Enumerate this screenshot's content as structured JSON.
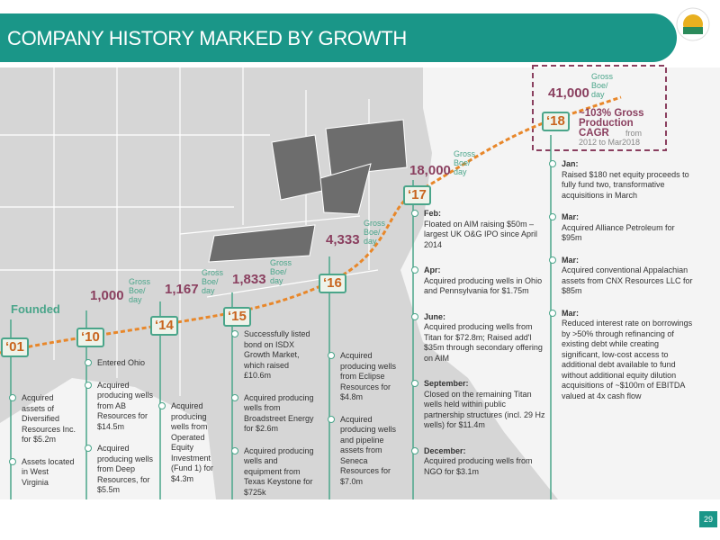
{
  "header": {
    "title": "COMPANY HISTORY MARKED BY GROWTH"
  },
  "founded_label": "Founded",
  "milestones": [
    {
      "year": "‘01",
      "items": [
        {
          "text": "Acquired assets of Diversified Resources Inc. for $5.2m"
        },
        {
          "text": "Assets located in West Virginia"
        }
      ]
    },
    {
      "year": "‘10",
      "production": "1,000",
      "unit": "Gross Boe/ day",
      "items": [
        {
          "text": "Entered Ohio"
        },
        {
          "text": "Acquired producing wells from AB Resources for $14.5m"
        },
        {
          "text": "Acquired producing wells from Deep Resources, for $5.5m"
        }
      ]
    },
    {
      "year": "‘14",
      "production": "1,167",
      "unit": "Gross Boe/ day",
      "items": [
        {
          "text": "Acquired producing wells from Operated Equity Investment (Fund 1) for $4.3m"
        }
      ]
    },
    {
      "year": "‘15",
      "production": "1,833",
      "unit": "Gross Boe/ day",
      "items": [
        {
          "text": "Successfully listed bond on ISDX Growth Market, which raised £10.6m"
        },
        {
          "text": "Acquired producing wells from Broadstreet Energy for $2.6m"
        },
        {
          "text": "Acquired producing wells and equipment from Texas Keystone for $725k"
        }
      ]
    },
    {
      "year": "‘16",
      "production": "4,333",
      "unit": "Gross Boe/ day",
      "items": [
        {
          "text": "Acquired producing wells from Eclipse Resources for $4.8m"
        },
        {
          "text": "Acquired producing wells and pipeline assets from Seneca Resources for $7.0m"
        }
      ]
    },
    {
      "year": "‘17",
      "production": "18,000",
      "unit": "Gross Boe/ day",
      "items": [
        {
          "heading": "Feb:",
          "text": "Floated on AIM raising $50m – largest UK O&G IPO since April 2014"
        },
        {
          "heading": "Apr:",
          "text": "Acquired producing wells in Ohio and Pennsylvania for $1.75m"
        },
        {
          "heading": "June:",
          "text": "Acquired producing wells from Titan for $72.8m; Raised add'l $35m through secondary offering on AIM"
        },
        {
          "heading": "September:",
          "text": "Closed on the remaining Titan wells held within public partnership structures (incl. 29 Hz wells) for $11.4m"
        },
        {
          "heading": "December:",
          "text": "Acquired producing wells from NGO for $3.1m"
        }
      ]
    },
    {
      "year": "‘18",
      "production": "41,000",
      "unit": "Gross Boe/ day",
      "cagr": "~103% Gross Production CAGR",
      "cagr_note": "from 2012 to Mar2018",
      "items": [
        {
          "heading": "Jan:",
          "text": "Raised $180 net equity proceeds to fully fund two, transformative acquisitions in March"
        },
        {
          "heading": "Mar:",
          "text": "Acquired Alliance Petroleum for $95m"
        },
        {
          "heading": "Mar:",
          "text": "Acquired conventional Appalachian assets from CNX Resources LLC for $85m"
        },
        {
          "heading": "Mar:",
          "text": "Reduced interest rate on borrowings by >50% through refinancing of existing debt while creating significant, low-cost access to additional debt available to fund without additional equity dilution acquisitions of ~$100m of EBITDA valued at 4x cash flow"
        }
      ]
    }
  ],
  "page_number": "29"
}
